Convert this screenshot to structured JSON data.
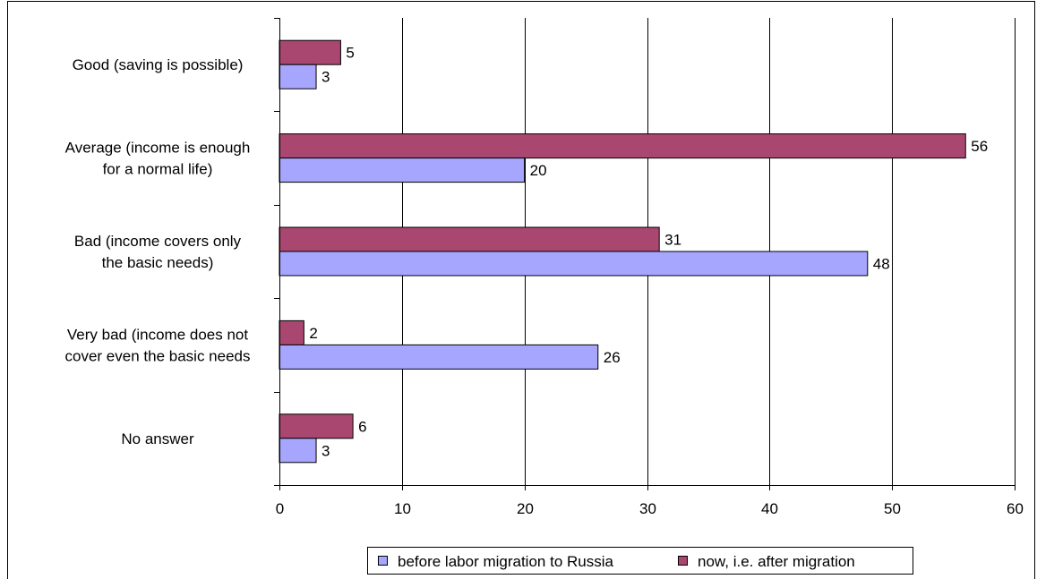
{
  "chart_data": {
    "type": "bar",
    "orientation": "horizontal",
    "categories": [
      [
        "Good (saving is possible)"
      ],
      [
        "Average (income is enough",
        "for a normal life)"
      ],
      [
        "Bad (income covers only",
        "the basic needs)"
      ],
      [
        "Very bad (income does not",
        "cover even the basic needs"
      ],
      [
        "No answer"
      ]
    ],
    "series": [
      {
        "name": "before labor migration to Russia",
        "color": "#a6a6ff",
        "values": [
          3,
          20,
          48,
          26,
          3
        ]
      },
      {
        "name": "now, i.e. after migration",
        "color": "#a94770",
        "values": [
          5,
          56,
          31,
          2,
          6
        ]
      }
    ],
    "xlim": [
      0,
      60
    ],
    "x_ticks": [
      0,
      10,
      20,
      30,
      40,
      50,
      60
    ],
    "grid": "vertical",
    "legend_position": "bottom"
  }
}
